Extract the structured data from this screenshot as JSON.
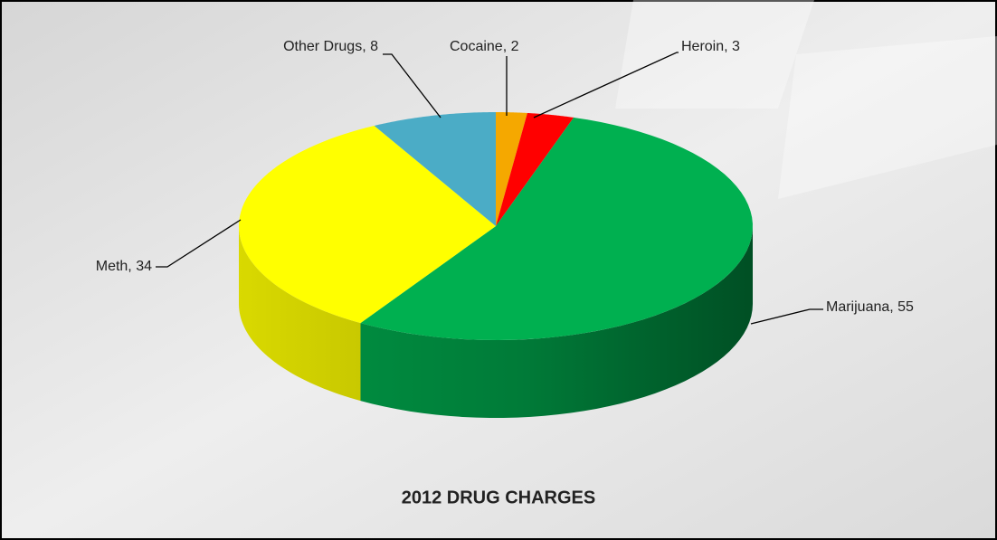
{
  "chart_data": {
    "type": "pie3d",
    "title": "2012 DRUG CHARGES",
    "values": [
      2,
      3,
      55,
      34,
      8
    ],
    "value_labels": [
      "Cocaine, 2",
      "Heroin, 3",
      "Marijuana, 55",
      "Meth, 34",
      "Other Drugs, 8"
    ],
    "colors": [
      "#f5a800",
      "#ff0000",
      "#00b050",
      "#ffff00",
      "#4bacc6"
    ]
  }
}
